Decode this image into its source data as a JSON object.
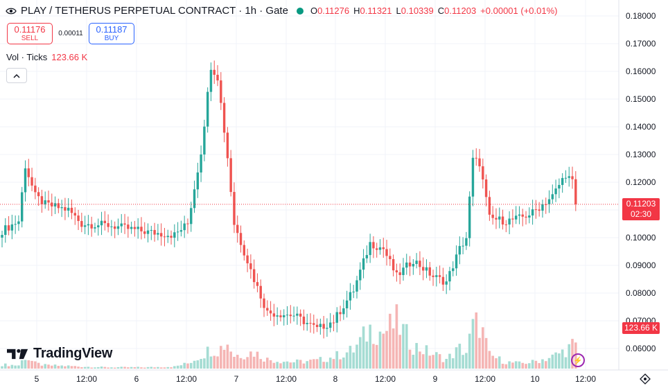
{
  "header": {
    "title": "PLAY / TETHERUS PERPETUAL CONTRACT · 1h · Gate",
    "ohlc": [
      {
        "k": "O",
        "v": "0.11276"
      },
      {
        "k": "H",
        "v": "0.11321"
      },
      {
        "k": "L",
        "v": "0.10339"
      },
      {
        "k": "C",
        "v": "0.11203"
      },
      {
        "k": "",
        "v": "+0.00001 (+0.01%)"
      }
    ]
  },
  "trade": {
    "sell_price": "0.11176",
    "sell_label": "SELL",
    "spread": "0.00011",
    "buy_price": "0.11187",
    "buy_label": "BUY"
  },
  "volume_legend": {
    "label": "Vol · Ticks",
    "value": "123.66 K"
  },
  "price_scale": [
    "0.18000",
    "0.17000",
    "0.16000",
    "0.15000",
    "0.14000",
    "0.13000",
    "0.12000",
    "0.11000",
    "0.10000",
    "0.09000",
    "0.08000",
    "0.07000",
    "0.06000"
  ],
  "time_scale": [
    "5",
    "12:00",
    "6",
    "12:00",
    "7",
    "12:00",
    "8",
    "12:00",
    "9",
    "12:00",
    "10",
    "12:00"
  ],
  "last_price": {
    "price": "0.11203",
    "countdown": "02:30"
  },
  "last_volume": "123.66 K",
  "logo": {
    "text": "TradingView"
  },
  "colors": {
    "up": "#26a69a",
    "down": "#ef5350",
    "up_vol": "#a5dcd3",
    "down_vol": "#f5b5b4",
    "accent": "#2962ff"
  },
  "chart_data": {
    "type": "candlestick",
    "timeframe": "1h",
    "y_range": [
      0.055,
      0.182
    ],
    "current_price": 0.11203,
    "anchors": [
      {
        "i": 0,
        "c": 0.1025,
        "v": 6
      },
      {
        "i": 5,
        "c": 0.106,
        "v": 5
      },
      {
        "i": 7,
        "c": 0.126,
        "v": 18
      },
      {
        "i": 10,
        "c": 0.115,
        "v": 8
      },
      {
        "i": 13,
        "c": 0.112,
        "v": 5
      },
      {
        "i": 20,
        "c": 0.11,
        "v": 4
      },
      {
        "i": 24,
        "c": 0.105,
        "v": 3
      },
      {
        "i": 32,
        "c": 0.1045,
        "v": 2
      },
      {
        "i": 44,
        "c": 0.102,
        "v": 2
      },
      {
        "i": 52,
        "c": 0.101,
        "v": 3
      },
      {
        "i": 56,
        "c": 0.105,
        "v": 8
      },
      {
        "i": 60,
        "c": 0.131,
        "v": 20
      },
      {
        "i": 63,
        "c": 0.162,
        "v": 30
      },
      {
        "i": 65,
        "c": 0.158,
        "v": 28
      },
      {
        "i": 68,
        "c": 0.129,
        "v": 40
      },
      {
        "i": 70,
        "c": 0.105,
        "v": 20
      },
      {
        "i": 76,
        "c": 0.085,
        "v": 25
      },
      {
        "i": 80,
        "c": 0.073,
        "v": 14
      },
      {
        "i": 88,
        "c": 0.072,
        "v": 10
      },
      {
        "i": 95,
        "c": 0.067,
        "v": 12
      },
      {
        "i": 100,
        "c": 0.07,
        "v": 18
      },
      {
        "i": 106,
        "c": 0.081,
        "v": 28
      },
      {
        "i": 111,
        "c": 0.098,
        "v": 60
      },
      {
        "i": 115,
        "c": 0.096,
        "v": 55
      },
      {
        "i": 119,
        "c": 0.086,
        "v": 70
      },
      {
        "i": 124,
        "c": 0.092,
        "v": 35
      },
      {
        "i": 130,
        "c": 0.086,
        "v": 22
      },
      {
        "i": 134,
        "c": 0.084,
        "v": 14
      },
      {
        "i": 138,
        "c": 0.096,
        "v": 30
      },
      {
        "i": 140,
        "c": 0.1,
        "v": 25
      },
      {
        "i": 142,
        "c": 0.128,
        "v": 62
      },
      {
        "i": 144,
        "c": 0.127,
        "v": 70
      },
      {
        "i": 147,
        "c": 0.107,
        "v": 20
      },
      {
        "i": 152,
        "c": 0.106,
        "v": 10
      },
      {
        "i": 156,
        "c": 0.107,
        "v": 8
      },
      {
        "i": 160,
        "c": 0.109,
        "v": 10
      },
      {
        "i": 166,
        "c": 0.115,
        "v": 18
      },
      {
        "i": 170,
        "c": 0.123,
        "v": 28
      },
      {
        "i": 172,
        "c": 0.12,
        "v": 35
      },
      {
        "i": 173,
        "c": 0.112,
        "v": 32
      }
    ]
  }
}
